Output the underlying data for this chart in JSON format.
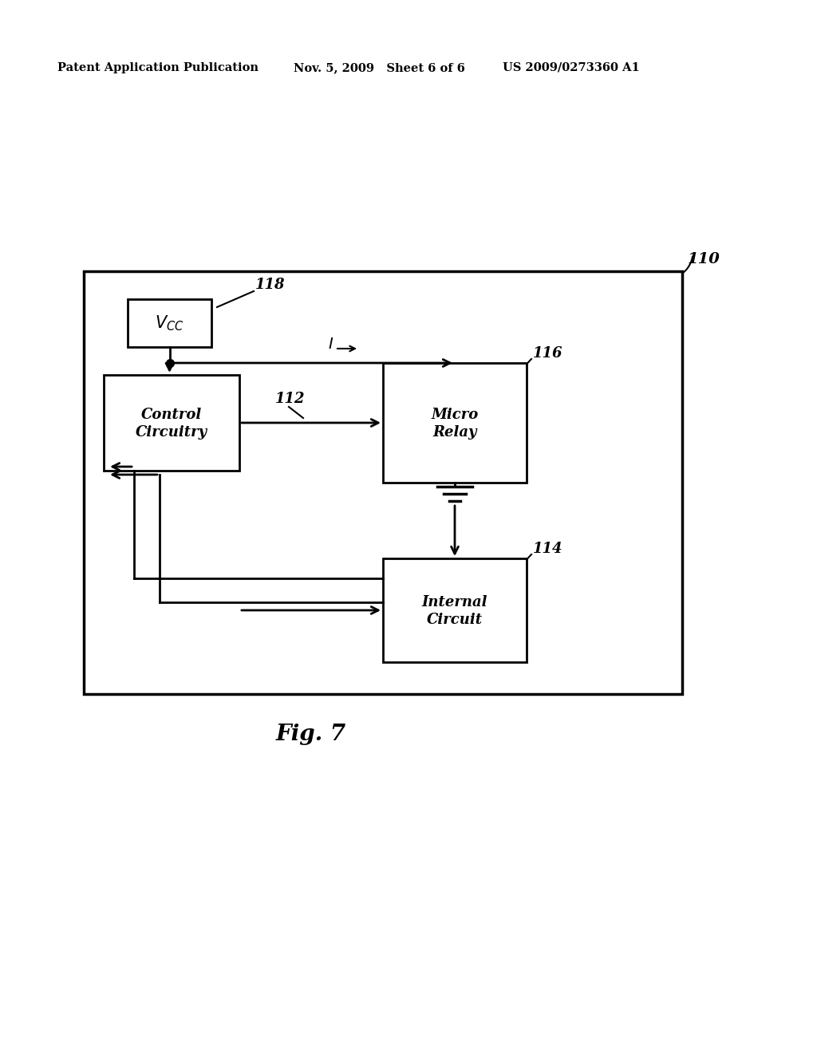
{
  "bg_color": "#ffffff",
  "header_left": "Patent Application Publication",
  "header_mid": "Nov. 5, 2009   Sheet 6 of 6",
  "header_right": "US 2009/0273360 A1",
  "fig_label": "Fig. 7",
  "outer_box_label": "110",
  "vcc_box_label2": "118",
  "control_label1": "Control",
  "control_label2": "Circuitry",
  "micro_label1": "Micro",
  "micro_label2": "Relay",
  "micro_box_label": "116",
  "internal_label1": "Internal",
  "internal_label2": "Circuit",
  "internal_box_label": "114",
  "arrow_I_label": "I",
  "arrow_112_label": "112"
}
